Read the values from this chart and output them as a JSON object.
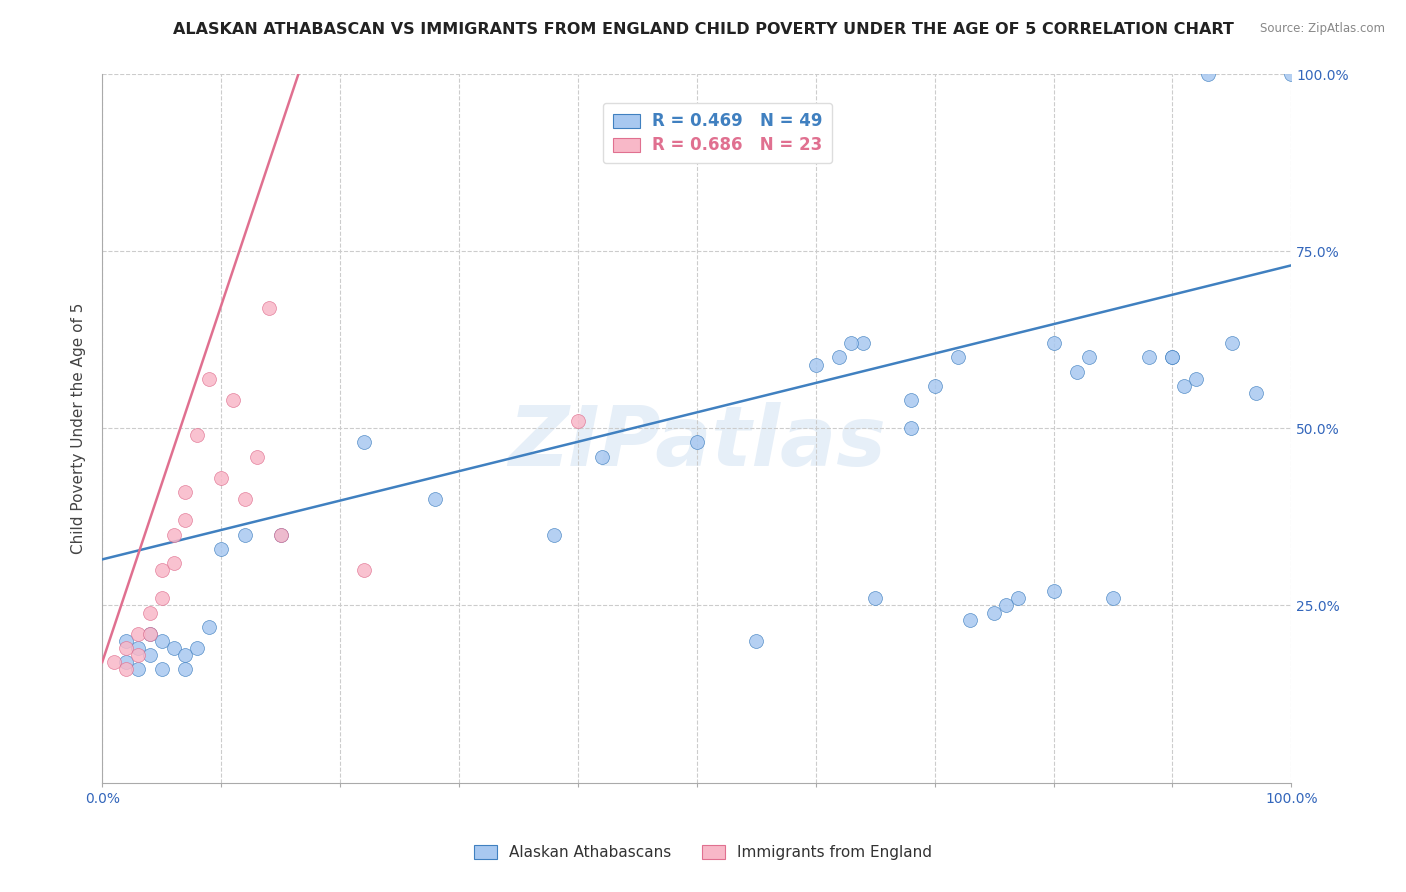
{
  "title": "ALASKAN ATHABASCAN VS IMMIGRANTS FROM ENGLAND CHILD POVERTY UNDER THE AGE OF 5 CORRELATION CHART",
  "source_text": "Source: ZipAtlas.com",
  "ylabel": "Child Poverty Under the Age of 5",
  "xlabel": "",
  "xlim": [
    0.0,
    1.0
  ],
  "ylim": [
    0.0,
    1.0
  ],
  "xticks": [
    0.0,
    0.1,
    0.2,
    0.3,
    0.4,
    0.5,
    0.6,
    0.7,
    0.8,
    0.9,
    1.0
  ],
  "xticklabels_show": {
    "0.0": "0.0%",
    "1.0": "100.0%"
  },
  "ytick_positions": [
    0.25,
    0.5,
    0.75,
    1.0
  ],
  "yticklabels": [
    "25.0%",
    "50.0%",
    "75.0%",
    "100.0%"
  ],
  "legend_blue_label": "Alaskan Athabascans",
  "legend_pink_label": "Immigrants from England",
  "R_blue": 0.469,
  "N_blue": 49,
  "R_pink": 0.686,
  "N_pink": 23,
  "blue_scatter_x": [
    0.02,
    0.02,
    0.03,
    0.03,
    0.04,
    0.04,
    0.05,
    0.05,
    0.06,
    0.07,
    0.07,
    0.08,
    0.09,
    0.1,
    0.12,
    0.15,
    0.22,
    0.28,
    0.38,
    0.42,
    0.5,
    0.55,
    0.62,
    0.64,
    0.68,
    0.7,
    0.72,
    0.75,
    0.77,
    0.8,
    0.82,
    0.83,
    0.85,
    0.88,
    0.9,
    0.91,
    0.93,
    0.95,
    0.97,
    1.0,
    0.6,
    0.63,
    0.65,
    0.68,
    0.73,
    0.76,
    0.8,
    0.9,
    0.92
  ],
  "blue_scatter_y": [
    0.2,
    0.17,
    0.19,
    0.16,
    0.21,
    0.18,
    0.2,
    0.16,
    0.19,
    0.18,
    0.16,
    0.19,
    0.22,
    0.33,
    0.35,
    0.35,
    0.48,
    0.4,
    0.35,
    0.46,
    0.48,
    0.2,
    0.6,
    0.62,
    0.54,
    0.56,
    0.6,
    0.24,
    0.26,
    0.62,
    0.58,
    0.6,
    0.26,
    0.6,
    0.6,
    0.56,
    1.0,
    0.62,
    0.55,
    1.0,
    0.59,
    0.62,
    0.26,
    0.5,
    0.23,
    0.25,
    0.27,
    0.6,
    0.57
  ],
  "pink_scatter_x": [
    0.01,
    0.02,
    0.02,
    0.03,
    0.03,
    0.04,
    0.04,
    0.05,
    0.05,
    0.06,
    0.06,
    0.07,
    0.07,
    0.08,
    0.09,
    0.1,
    0.11,
    0.12,
    0.13,
    0.14,
    0.15,
    0.22,
    0.4
  ],
  "pink_scatter_y": [
    0.17,
    0.19,
    0.16,
    0.21,
    0.18,
    0.24,
    0.21,
    0.3,
    0.26,
    0.35,
    0.31,
    0.41,
    0.37,
    0.49,
    0.57,
    0.43,
    0.54,
    0.4,
    0.46,
    0.67,
    0.35,
    0.3,
    0.51
  ],
  "blue_line_x": [
    0.0,
    1.0
  ],
  "blue_line_y": [
    0.315,
    0.73
  ],
  "pink_line_x": [
    0.0,
    0.165
  ],
  "pink_line_y": [
    0.17,
    1.0
  ],
  "blue_color": "#A8C8F0",
  "pink_color": "#F8B8C8",
  "blue_line_color": "#4080C0",
  "pink_line_color": "#E07090",
  "watermark": "ZIPatlas",
  "background_color": "#FFFFFF",
  "grid_color": "#CCCCCC"
}
